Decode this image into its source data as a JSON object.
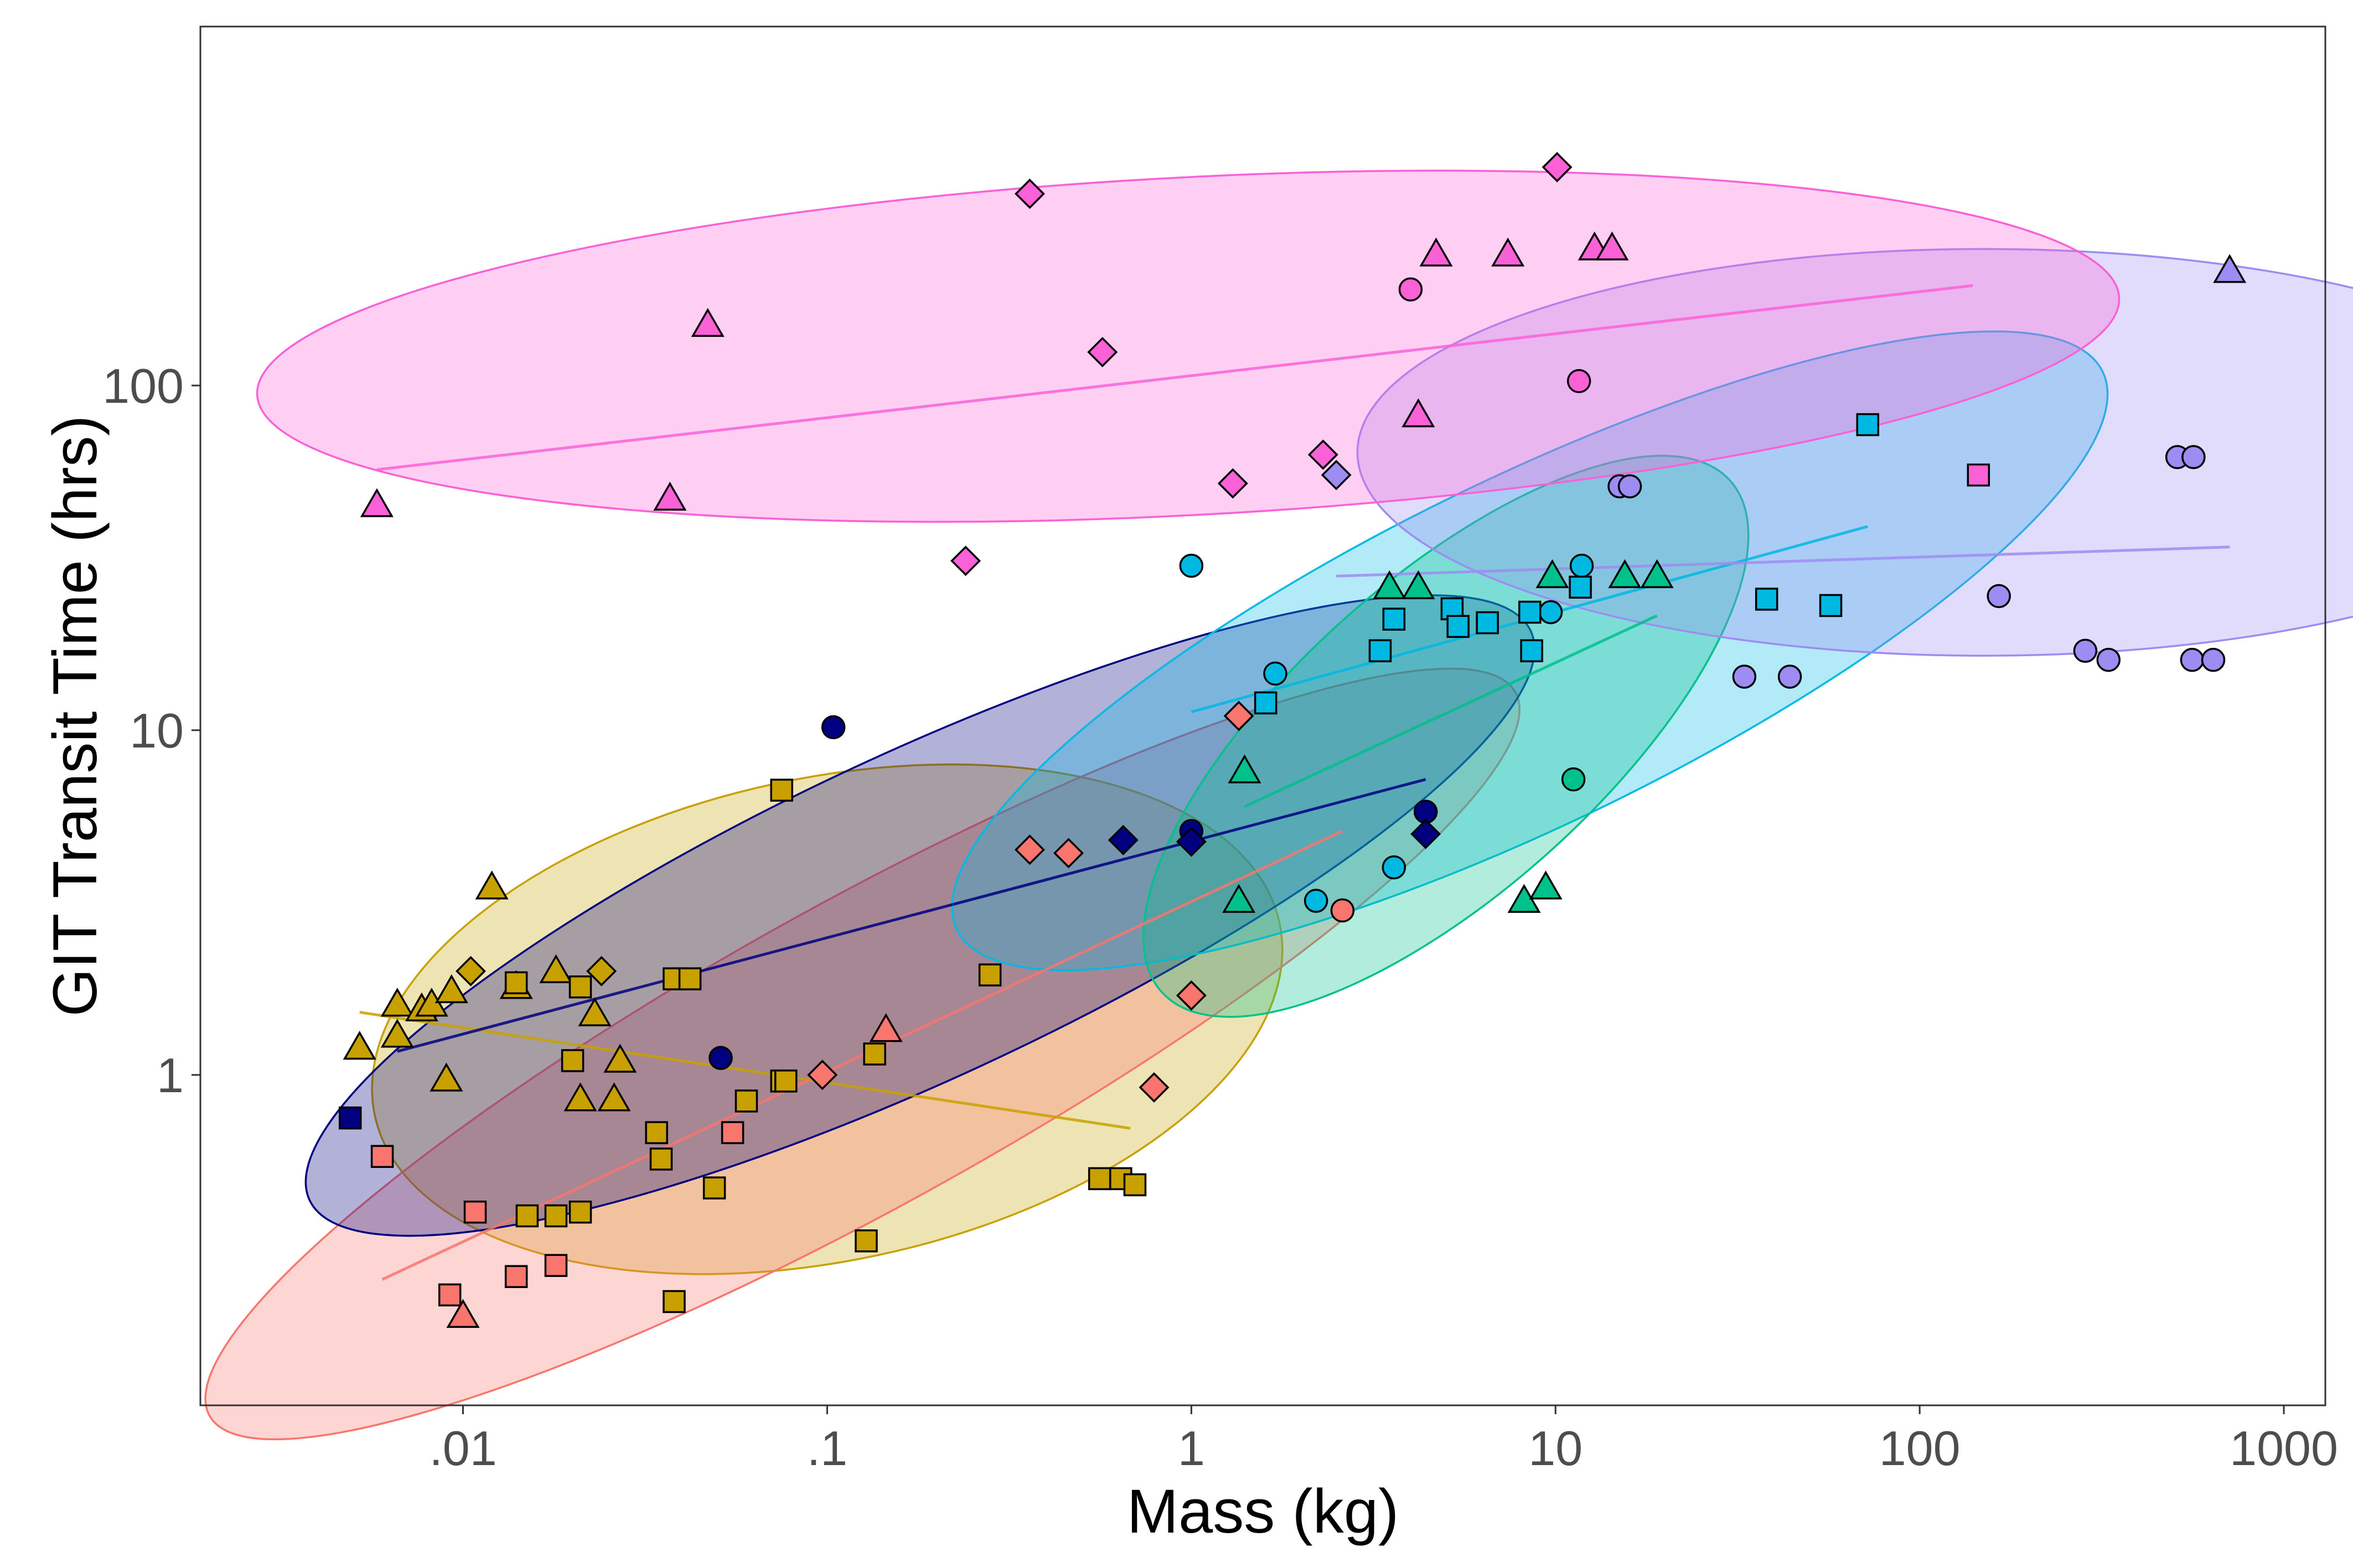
{
  "chart_data": {
    "type": "scatter",
    "xlabel": "Mass (kg)",
    "ylabel": "GIT Transit Time (hrs)",
    "x_scale": "log",
    "y_scale": "log",
    "xlim": [
      0.0019,
      1300
    ],
    "ylim": [
      0.11,
      1100
    ],
    "x_ticks": [
      {
        "value": 0.01,
        "label": ".01"
      },
      {
        "value": 0.1,
        "label": ".1"
      },
      {
        "value": 1,
        "label": "1"
      },
      {
        "value": 10,
        "label": "10"
      },
      {
        "value": 100,
        "label": "100"
      },
      {
        "value": 1000,
        "label": "1000"
      }
    ],
    "y_ticks": [
      {
        "value": 1,
        "label": "1"
      },
      {
        "value": 10,
        "label": "10"
      },
      {
        "value": 100,
        "label": "100"
      }
    ],
    "grid": false,
    "legend": "none",
    "series": [
      {
        "color": "#c8a100",
        "points": [
          {
            "x": 0.0052,
            "y": 1.2,
            "shape": "triangle"
          },
          {
            "x": 0.0066,
            "y": 1.3,
            "shape": "triangle"
          },
          {
            "x": 0.0066,
            "y": 1.6,
            "shape": "triangle"
          },
          {
            "x": 0.0077,
            "y": 1.55,
            "shape": "triangle"
          },
          {
            "x": 0.0082,
            "y": 1.6,
            "shape": "triangle"
          },
          {
            "x": 0.0093,
            "y": 1.75,
            "shape": "triangle"
          },
          {
            "x": 0.009,
            "y": 0.97,
            "shape": "triangle"
          },
          {
            "x": 0.012,
            "y": 3.5,
            "shape": "triangle"
          },
          {
            "x": 0.014,
            "y": 1.8,
            "shape": "triangle"
          },
          {
            "x": 0.018,
            "y": 2.0,
            "shape": "triangle"
          },
          {
            "x": 0.023,
            "y": 1.5,
            "shape": "triangle"
          },
          {
            "x": 0.027,
            "y": 1.1,
            "shape": "triangle"
          },
          {
            "x": 0.021,
            "y": 0.85,
            "shape": "triangle"
          },
          {
            "x": 0.026,
            "y": 0.85,
            "shape": "triangle"
          },
          {
            "x": 0.0105,
            "y": 2.0,
            "shape": "diamond"
          },
          {
            "x": 0.024,
            "y": 2.0,
            "shape": "diamond"
          },
          {
            "x": 0.014,
            "y": 1.85,
            "shape": "square"
          },
          {
            "x": 0.021,
            "y": 1.8,
            "shape": "square"
          },
          {
            "x": 0.038,
            "y": 1.9,
            "shape": "square"
          },
          {
            "x": 0.042,
            "y": 1.9,
            "shape": "square"
          },
          {
            "x": 0.02,
            "y": 1.1,
            "shape": "square"
          },
          {
            "x": 0.034,
            "y": 0.68,
            "shape": "square"
          },
          {
            "x": 0.035,
            "y": 0.57,
            "shape": "square"
          },
          {
            "x": 0.06,
            "y": 0.84,
            "shape": "square"
          },
          {
            "x": 0.075,
            "y": 0.96,
            "shape": "square"
          },
          {
            "x": 0.077,
            "y": 0.96,
            "shape": "square"
          },
          {
            "x": 0.075,
            "y": 6.7,
            "shape": "square"
          },
          {
            "x": 0.28,
            "y": 1.95,
            "shape": "square"
          },
          {
            "x": 0.135,
            "y": 1.15,
            "shape": "square"
          },
          {
            "x": 0.049,
            "y": 0.47,
            "shape": "square"
          },
          {
            "x": 0.015,
            "y": 0.39,
            "shape": "square"
          },
          {
            "x": 0.018,
            "y": 0.39,
            "shape": "square"
          },
          {
            "x": 0.021,
            "y": 0.4,
            "shape": "square"
          },
          {
            "x": 0.128,
            "y": 0.33,
            "shape": "square"
          },
          {
            "x": 0.038,
            "y": 0.22,
            "shape": "square"
          },
          {
            "x": 0.56,
            "y": 0.5,
            "shape": "square"
          },
          {
            "x": 0.64,
            "y": 0.5,
            "shape": "square"
          },
          {
            "x": 0.7,
            "y": 0.48,
            "shape": "square"
          }
        ],
        "trend": {
          "x": [
            0.0052,
            0.68
          ],
          "y": [
            1.52,
            0.7
          ]
        },
        "ellipse": {
          "cx": 0.1,
          "cy": 1.45,
          "rx_log10": 1.27,
          "ry_log10": 0.7,
          "angle": -12
        }
      },
      {
        "color": "#f8766d",
        "points": [
          {
            "x": 0.006,
            "y": 0.58,
            "shape": "square"
          },
          {
            "x": 0.0108,
            "y": 0.4,
            "shape": "square"
          },
          {
            "x": 0.0092,
            "y": 0.23,
            "shape": "square"
          },
          {
            "x": 0.014,
            "y": 0.26,
            "shape": "square"
          },
          {
            "x": 0.018,
            "y": 0.28,
            "shape": "square"
          },
          {
            "x": 0.055,
            "y": 0.68,
            "shape": "square"
          },
          {
            "x": 0.01,
            "y": 0.2,
            "shape": "triangle"
          },
          {
            "x": 0.145,
            "y": 1.35,
            "shape": "triangle"
          },
          {
            "x": 0.097,
            "y": 1.0,
            "shape": "diamond"
          },
          {
            "x": 0.36,
            "y": 4.5,
            "shape": "diamond"
          },
          {
            "x": 0.46,
            "y": 4.4,
            "shape": "diamond"
          },
          {
            "x": 0.79,
            "y": 0.92,
            "shape": "diamond"
          },
          {
            "x": 1.0,
            "y": 1.7,
            "shape": "diamond"
          },
          {
            "x": 1.35,
            "y": 11.0,
            "shape": "diamond"
          },
          {
            "x": 2.6,
            "y": 3.0,
            "shape": "circle"
          }
        ],
        "trend": {
          "x": [
            0.006,
            2.6
          ],
          "y": [
            0.255,
            5.1
          ]
        },
        "ellipse": {
          "cx": 0.125,
          "cy": 1.15,
          "rx_log10": 2.05,
          "ry_log10": 0.44,
          "angle": -29
        }
      },
      {
        "color": "#000080",
        "points": [
          {
            "x": 0.0049,
            "y": 0.75,
            "shape": "square"
          },
          {
            "x": 0.051,
            "y": 1.12,
            "shape": "circle"
          },
          {
            "x": 0.104,
            "y": 10.2,
            "shape": "circle"
          },
          {
            "x": 1.0,
            "y": 5.1,
            "shape": "circle"
          },
          {
            "x": 4.4,
            "y": 5.8,
            "shape": "circle"
          },
          {
            "x": 0.65,
            "y": 4.8,
            "shape": "diamond"
          },
          {
            "x": 1.0,
            "y": 4.75,
            "shape": "diamond"
          },
          {
            "x": 4.4,
            "y": 5.0,
            "shape": "diamond"
          }
        ],
        "trend": {
          "x": [
            0.0066,
            4.4
          ],
          "y": [
            1.17,
            7.2
          ]
        },
        "ellipse": {
          "cx": 0.18,
          "cy": 2.9,
          "rx_log10": 1.85,
          "ry_log10": 0.47,
          "angle": -25
        }
      },
      {
        "color": "#00b9e3",
        "points": [
          {
            "x": 1.0,
            "y": 30.0,
            "shape": "circle"
          },
          {
            "x": 1.7,
            "y": 14.6,
            "shape": "circle"
          },
          {
            "x": 2.2,
            "y": 3.2,
            "shape": "circle"
          },
          {
            "x": 3.6,
            "y": 4.0,
            "shape": "circle"
          },
          {
            "x": 9.7,
            "y": 22.0,
            "shape": "circle"
          },
          {
            "x": 11.8,
            "y": 30.0,
            "shape": "circle"
          },
          {
            "x": 1.6,
            "y": 12.0,
            "shape": "square"
          },
          {
            "x": 3.3,
            "y": 17.0,
            "shape": "square"
          },
          {
            "x": 3.6,
            "y": 21.0,
            "shape": "square"
          },
          {
            "x": 5.2,
            "y": 22.5,
            "shape": "square"
          },
          {
            "x": 5.4,
            "y": 20.0,
            "shape": "square"
          },
          {
            "x": 6.5,
            "y": 20.5,
            "shape": "square"
          },
          {
            "x": 8.5,
            "y": 22.0,
            "shape": "square"
          },
          {
            "x": 8.6,
            "y": 17.0,
            "shape": "square"
          },
          {
            "x": 11.7,
            "y": 26.0,
            "shape": "square"
          },
          {
            "x": 38.0,
            "y": 24.0,
            "shape": "square"
          },
          {
            "x": 57.0,
            "y": 23.0,
            "shape": "square"
          },
          {
            "x": 72.0,
            "y": 77.0,
            "shape": "square"
          }
        ],
        "trend": {
          "x": [
            1.0,
            72.0
          ],
          "y": [
            11.3,
            39.0
          ]
        },
        "ellipse": {
          "cx": 8.5,
          "cy": 17.0,
          "rx_log10": 1.75,
          "ry_log10": 0.5,
          "angle": -26
        }
      },
      {
        "color": "#00c08b",
        "points": [
          {
            "x": 1.4,
            "y": 7.6,
            "shape": "triangle"
          },
          {
            "x": 1.35,
            "y": 3.2,
            "shape": "triangle"
          },
          {
            "x": 3.5,
            "y": 26.0,
            "shape": "triangle"
          },
          {
            "x": 4.2,
            "y": 26.0,
            "shape": "triangle"
          },
          {
            "x": 8.2,
            "y": 3.2,
            "shape": "triangle"
          },
          {
            "x": 9.4,
            "y": 3.5,
            "shape": "triangle"
          },
          {
            "x": 9.8,
            "y": 28.0,
            "shape": "triangle"
          },
          {
            "x": 15.5,
            "y": 28.0,
            "shape": "triangle"
          },
          {
            "x": 19.0,
            "y": 28.0,
            "shape": "triangle"
          },
          {
            "x": 11.2,
            "y": 7.2,
            "shape": "circle"
          }
        ],
        "trend": {
          "x": [
            1.4,
            19.0
          ],
          "y": [
            6.0,
            21.5
          ]
        },
        "ellipse": {
          "cx": 5.0,
          "cy": 9.6,
          "rx_log10": 1.05,
          "ry_log10": 0.45,
          "angle": -42
        }
      },
      {
        "color": "#9d8cf2",
        "points": [
          {
            "x": 2.5,
            "y": 55.0,
            "shape": "diamond"
          },
          {
            "x": 15.0,
            "y": 51.0,
            "shape": "circle"
          },
          {
            "x": 16.0,
            "y": 51.0,
            "shape": "circle"
          },
          {
            "x": 33.0,
            "y": 14.3,
            "shape": "circle"
          },
          {
            "x": 44.0,
            "y": 14.3,
            "shape": "circle"
          },
          {
            "x": 165.0,
            "y": 24.5,
            "shape": "circle"
          },
          {
            "x": 285.0,
            "y": 17.0,
            "shape": "circle"
          },
          {
            "x": 330.0,
            "y": 16.0,
            "shape": "circle"
          },
          {
            "x": 510.0,
            "y": 62.0,
            "shape": "circle"
          },
          {
            "x": 565.0,
            "y": 62.0,
            "shape": "circle"
          },
          {
            "x": 560.0,
            "y": 16.0,
            "shape": "circle"
          },
          {
            "x": 640.0,
            "y": 16.0,
            "shape": "circle"
          },
          {
            "x": 710.0,
            "y": 215.0,
            "shape": "triangle"
          }
        ],
        "trend": {
          "x": [
            2.5,
            710.0
          ],
          "y": [
            28.0,
            34.0
          ]
        },
        "ellipse": {
          "cx": 150.0,
          "cy": 64.0,
          "rx_log10": 1.72,
          "ry_log10": 0.59,
          "angle": 0
        }
      },
      {
        "color": "#fb61d7",
        "points": [
          {
            "x": 0.0058,
            "y": 45.0,
            "shape": "triangle"
          },
          {
            "x": 0.037,
            "y": 47.0,
            "shape": "triangle"
          },
          {
            "x": 0.047,
            "y": 150.0,
            "shape": "triangle"
          },
          {
            "x": 4.2,
            "y": 82.0,
            "shape": "triangle"
          },
          {
            "x": 4.7,
            "y": 240.0,
            "shape": "triangle"
          },
          {
            "x": 7.4,
            "y": 240.0,
            "shape": "triangle"
          },
          {
            "x": 12.8,
            "y": 250.0,
            "shape": "triangle"
          },
          {
            "x": 14.3,
            "y": 250.0,
            "shape": "triangle"
          },
          {
            "x": 0.24,
            "y": 31.0,
            "shape": "diamond"
          },
          {
            "x": 0.36,
            "y": 360.0,
            "shape": "diamond"
          },
          {
            "x": 0.57,
            "y": 125.0,
            "shape": "diamond"
          },
          {
            "x": 1.3,
            "y": 52.0,
            "shape": "diamond"
          },
          {
            "x": 2.3,
            "y": 63.0,
            "shape": "diamond"
          },
          {
            "x": 10.1,
            "y": 430.0,
            "shape": "diamond"
          },
          {
            "x": 4.0,
            "y": 190.0,
            "shape": "circle"
          },
          {
            "x": 11.6,
            "y": 103.0,
            "shape": "circle"
          },
          {
            "x": 145.0,
            "y": 55.0,
            "shape": "square"
          }
        ],
        "trend": {
          "x": [
            0.0058,
            140.0
          ],
          "y": [
            57.0,
            195.0
          ]
        },
        "ellipse": {
          "cx": 0.98,
          "cy": 130.0,
          "rx_log10": 2.56,
          "ry_log10": 0.49,
          "angle": -3
        }
      }
    ]
  }
}
